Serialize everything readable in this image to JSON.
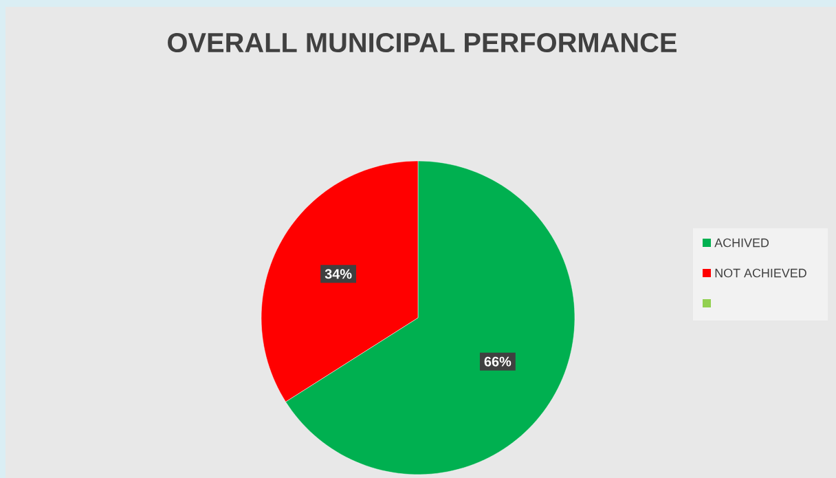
{
  "chart_data": {
    "type": "pie",
    "title": "OVERALL MUNICIPAL PERFORMANCE",
    "categories": [
      "ACHIVED",
      "NOT ACHIEVED",
      null
    ],
    "values": [
      66,
      34,
      0
    ],
    "colors": [
      "#00b050",
      "#ff0000",
      "#92d050"
    ],
    "value_labels": [
      "66%",
      "34%",
      null
    ],
    "legend": "right"
  }
}
